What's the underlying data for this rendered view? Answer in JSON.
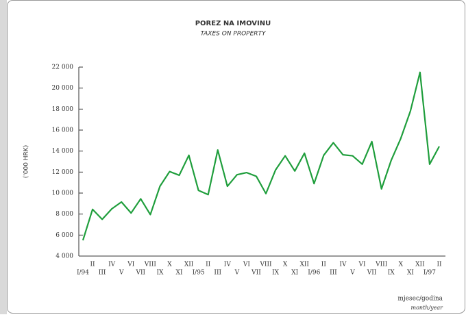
{
  "chart_data": {
    "type": "line",
    "title": "POREZ NA IMOVINU",
    "subtitle": "TAXES ON PROPERTY",
    "y_label": "('000 HRK)",
    "x_label": "mjesec/godina",
    "x_label_sub": "month/year",
    "categories": [
      "I/94",
      "II",
      "III",
      "IV",
      "V",
      "VI",
      "VII",
      "VIII",
      "IX",
      "X",
      "XI",
      "XII",
      "I/95",
      "II",
      "III",
      "IV",
      "V",
      "VI",
      "VII",
      "VIII",
      "IX",
      "X",
      "XI",
      "XII",
      "I/96",
      "II",
      "III",
      "IV",
      "V",
      "VI",
      "VII",
      "VIII",
      "IX",
      "X",
      "XI",
      "XII",
      "I/97",
      "II"
    ],
    "series": [
      {
        "name": "POREZ NA IMOVINU",
        "color": "#1f9e3c",
        "values": [
          5500,
          8450,
          7500,
          8500,
          9150,
          8100,
          9450,
          7950,
          10650,
          12050,
          11700,
          13600,
          10250,
          9850,
          14100,
          10650,
          11750,
          11950,
          11600,
          9950,
          12200,
          13550,
          12100,
          13800,
          10900,
          13600,
          14800,
          13650,
          13550,
          12750,
          14900,
          10400,
          13100,
          15200,
          17800,
          21500,
          12750,
          14450
        ]
      }
    ],
    "ylim": [
      4000,
      22000
    ],
    "yticks": [
      {
        "value": 4000,
        "label": "4 000"
      },
      {
        "value": 6000,
        "label": "6 000"
      },
      {
        "value": 8000,
        "label": "8 000"
      },
      {
        "value": 10000,
        "label": "10 000"
      },
      {
        "value": 12000,
        "label": "12 000"
      },
      {
        "value": 14000,
        "label": "14 000"
      },
      {
        "value": 16000,
        "label": "16 000"
      },
      {
        "value": 18000,
        "label": "18 000"
      },
      {
        "value": 20000,
        "label": "20 000"
      },
      {
        "value": 22000,
        "label": "22 000"
      }
    ],
    "grid": false
  }
}
